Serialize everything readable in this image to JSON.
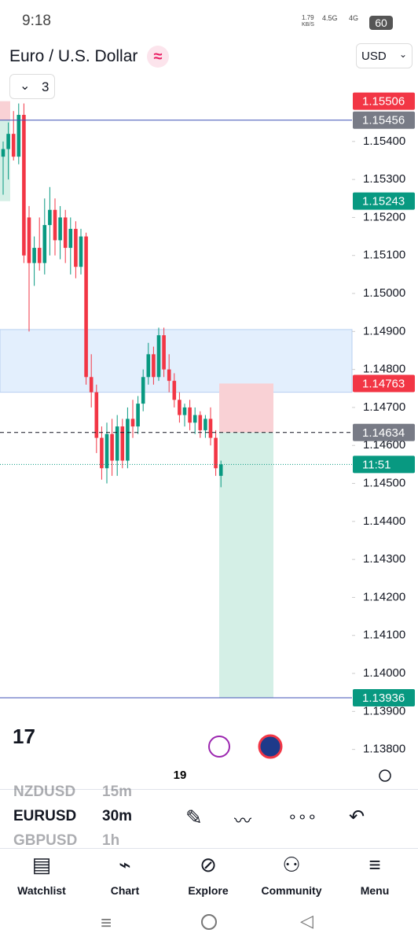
{
  "status_bar": {
    "time": "9:18",
    "speed": "1.79",
    "speed_unit": "KB/S",
    "net1": "4.5G",
    "net2": "4G",
    "battery": "60"
  },
  "header": {
    "symbol": "Euro / U.S. Dollar",
    "currency": "USD",
    "indicators_count": "3"
  },
  "chart_data": {
    "type": "candlestick",
    "candles": [
      [
        1.1536,
        1.154,
        1.1526,
        1.1538
      ],
      [
        1.1538,
        1.1545,
        1.153,
        1.1542
      ],
      [
        1.1542,
        1.1548,
        1.1535,
        1.1536
      ],
      [
        1.1536,
        1.155,
        1.1534,
        1.1547
      ],
      [
        1.1547,
        1.155,
        1.1508,
        1.151
      ],
      [
        1.152,
        1.1523,
        1.149,
        1.1508
      ],
      [
        1.1508,
        1.1515,
        1.1502,
        1.1512
      ],
      [
        1.1512,
        1.152,
        1.1506,
        1.1508
      ],
      [
        1.1508,
        1.1525,
        1.1505,
        1.1518
      ],
      [
        1.1518,
        1.1528,
        1.151,
        1.1522
      ],
      [
        1.1522,
        1.1525,
        1.151,
        1.1514
      ],
      [
        1.1514,
        1.1523,
        1.1509,
        1.152
      ],
      [
        1.152,
        1.1522,
        1.1508,
        1.1512
      ],
      [
        1.1512,
        1.152,
        1.1505,
        1.1517
      ],
      [
        1.1517,
        1.1519,
        1.1504,
        1.1507
      ],
      [
        1.1507,
        1.1517,
        1.1505,
        1.1515
      ],
      [
        1.1515,
        1.1516,
        1.1476,
        1.1478
      ],
      [
        1.1478,
        1.1484,
        1.147,
        1.1474
      ],
      [
        1.1474,
        1.1476,
        1.1458,
        1.1462
      ],
      [
        1.1462,
        1.1465,
        1.1451,
        1.1454
      ],
      [
        1.1454,
        1.1466,
        1.145,
        1.1463
      ],
      [
        1.1463,
        1.1467,
        1.1452,
        1.1456
      ],
      [
        1.1456,
        1.1468,
        1.1452,
        1.1465
      ],
      [
        1.1465,
        1.1467,
        1.1454,
        1.1456
      ],
      [
        1.1456,
        1.147,
        1.1454,
        1.1467
      ],
      [
        1.1467,
        1.1472,
        1.1462,
        1.1465
      ],
      [
        1.1465,
        1.1473,
        1.1463,
        1.1471
      ],
      [
        1.1471,
        1.148,
        1.1469,
        1.1478
      ],
      [
        1.1478,
        1.1487,
        1.1476,
        1.1484
      ],
      [
        1.1484,
        1.1486,
        1.1476,
        1.1478
      ],
      [
        1.1478,
        1.1491,
        1.1477,
        1.1489
      ],
      [
        1.1489,
        1.1491,
        1.1478,
        1.148
      ],
      [
        1.148,
        1.1484,
        1.1474,
        1.1477
      ],
      [
        1.1477,
        1.1479,
        1.147,
        1.1472
      ],
      [
        1.1472,
        1.1474,
        1.1466,
        1.1468
      ],
      [
        1.1468,
        1.1471,
        1.1465,
        1.147
      ],
      [
        1.147,
        1.1472,
        1.1464,
        1.1466
      ],
      [
        1.1466,
        1.147,
        1.1463,
        1.1468
      ],
      [
        1.1468,
        1.1469,
        1.1462,
        1.1464
      ],
      [
        1.1464,
        1.1468,
        1.1462,
        1.1467
      ],
      [
        1.1467,
        1.147,
        1.146,
        1.1462
      ],
      [
        1.1462,
        1.1464,
        1.1452,
        1.1454
      ],
      [
        1.1452,
        1.1456,
        1.1449,
        1.1455
      ]
    ],
    "up_color": "#089981",
    "down_color": "#f23645",
    "ylim": [
      1.13733,
      1.15528
    ],
    "yticks": [
      {
        "value": 1.154,
        "label": "1.15400"
      },
      {
        "value": 1.153,
        "label": "1.15300"
      },
      {
        "value": 1.152,
        "label": "1.15200"
      },
      {
        "value": 1.151,
        "label": "1.15100"
      },
      {
        "value": 1.15,
        "label": "1.15000"
      },
      {
        "value": 1.149,
        "label": "1.14900"
      },
      {
        "value": 1.148,
        "label": "1.14800"
      },
      {
        "value": 1.147,
        "label": "1.14700"
      },
      {
        "value": 1.146,
        "label": "1.14600"
      },
      {
        "value": 1.145,
        "label": "1.14500"
      },
      {
        "value": 1.144,
        "label": "1.14400"
      },
      {
        "value": 1.143,
        "label": "1.14300"
      },
      {
        "value": 1.142,
        "label": "1.14200"
      },
      {
        "value": 1.141,
        "label": "1.14100"
      },
      {
        "value": 1.14,
        "label": "1.14000"
      },
      {
        "value": 1.139,
        "label": "1.13900"
      },
      {
        "value": 1.138,
        "label": "1.13800"
      }
    ],
    "price_labels": [
      {
        "value": 1.15506,
        "label": "1.15506",
        "color": "#f23645"
      },
      {
        "value": 1.15456,
        "label": "1.15456",
        "color": "#787b86",
        "line": "solid"
      },
      {
        "value": 1.15243,
        "label": "1.15243",
        "color": "#089981"
      },
      {
        "value": 1.14763,
        "label": "1.14763",
        "color": "#f23645"
      },
      {
        "value": 1.14634,
        "label": "1.14634",
        "color": "#787b86",
        "line": "dashed"
      },
      {
        "value": 1.13936,
        "label": "1.13936",
        "color": "#089981",
        "line": "solid"
      }
    ],
    "countdown": "11:51",
    "zones": [
      {
        "top": 1.14905,
        "bottom": 1.1474,
        "color": "#e3effd"
      }
    ],
    "x_label": "19"
  },
  "watchlist": [
    {
      "symbol": "NZDUSD",
      "interval": "15m"
    },
    {
      "symbol": "EURUSD",
      "interval": "30m"
    },
    {
      "symbol": "GBPUSD",
      "interval": "1h"
    }
  ],
  "nav": [
    "Watchlist",
    "Chart",
    "Explore",
    "Community",
    "Menu"
  ]
}
